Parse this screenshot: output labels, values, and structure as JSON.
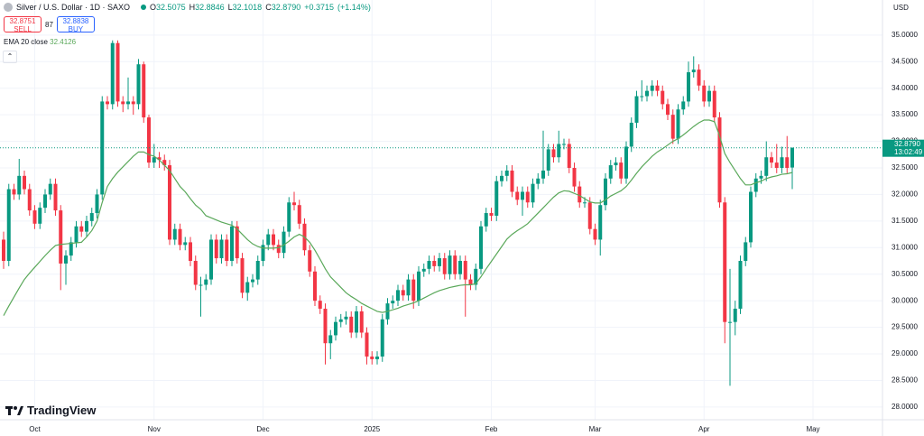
{
  "header": {
    "title": "Silver / U.S. Dollar · 1D · SAXO",
    "ohlc": [
      {
        "key": "O",
        "value": 32.5075
      },
      {
        "key": "H",
        "value": 32.8846
      },
      {
        "key": "L",
        "value": 32.1018
      },
      {
        "key": "C",
        "value": 32.879,
        "value_label": "32.8790"
      }
    ],
    "change": {
      "value": 0.3715,
      "label": "+0.3715"
    },
    "change_pct": {
      "value": 1.14,
      "label": "(+1.14%)"
    },
    "sell": {
      "price": 32.8751,
      "label": "SELL"
    },
    "spread": 87,
    "buy": {
      "price": 32.8838,
      "label": "BUY"
    },
    "logo": "TradingView"
  },
  "chart_data": {
    "type": "candlestick",
    "currency": "USD",
    "color_up": "#089981",
    "color_down": "#f23645",
    "grid": true,
    "categories": [
      null,
      null,
      null,
      null,
      null,
      null,
      "Oct",
      null,
      null,
      null,
      null,
      null,
      null,
      null,
      null,
      null,
      null,
      null,
      null,
      null,
      null,
      null,
      null,
      null,
      null,
      null,
      null,
      null,
      null,
      "Nov",
      null,
      null,
      null,
      null,
      null,
      null,
      null,
      null,
      null,
      null,
      null,
      null,
      null,
      null,
      null,
      null,
      null,
      null,
      null,
      null,
      "Dec",
      null,
      null,
      null,
      null,
      null,
      null,
      null,
      null,
      null,
      null,
      null,
      null,
      null,
      null,
      null,
      null,
      null,
      null,
      null,
      null,
      "2025",
      null,
      null,
      null,
      null,
      null,
      null,
      null,
      null,
      null,
      null,
      null,
      null,
      null,
      null,
      null,
      null,
      null,
      null,
      null,
      null,
      null,
      null,
      "Feb",
      null,
      null,
      null,
      null,
      null,
      null,
      null,
      null,
      null,
      null,
      null,
      null,
      null,
      null,
      null,
      null,
      null,
      null,
      null,
      "Mar",
      null,
      null,
      null,
      null,
      null,
      null,
      null,
      null,
      null,
      null,
      null,
      null,
      null,
      null,
      null,
      null,
      null,
      null,
      null,
      null,
      "Apr",
      null,
      null,
      null,
      null,
      null,
      null,
      null,
      null,
      null,
      null,
      null,
      null,
      null,
      null,
      null,
      null,
      null,
      null,
      null,
      null,
      "May"
    ],
    "open": [
      31.15,
      30.75,
      32.1,
      32.0,
      32.35,
      32.1,
      31.7,
      31.45,
      31.75,
      32.0,
      32.2,
      31.7,
      30.7,
      30.85,
      31.1,
      31.4,
      31.3,
      31.5,
      31.65,
      32.0,
      33.75,
      33.7,
      34.85,
      33.75,
      33.7,
      33.75,
      33.7,
      34.45,
      33.45,
      32.6,
      32.7,
      32.65,
      32.55,
      31.15,
      31.35,
      31.05,
      31.1,
      30.75,
      30.3,
      30.3,
      30.4,
      31.15,
      30.8,
      31.15,
      30.75,
      31.4,
      30.8,
      30.15,
      30.35,
      30.4,
      30.75,
      31.05,
      31.25,
      31.05,
      30.9,
      31.3,
      31.85,
      31.8,
      31.45,
      30.95,
      30.55,
      30.0,
      29.85,
      29.2,
      29.35,
      29.6,
      29.65,
      29.7,
      29.4,
      29.8,
      29.4,
      28.95,
      28.9,
      28.95,
      29.65,
      29.95,
      30.0,
      30.2,
      30.1,
      30.4,
      30.0,
      30.55,
      30.6,
      30.75,
      30.65,
      30.8,
      30.5,
      30.85,
      30.5,
      30.75,
      30.4,
      30.3,
      30.6,
      31.4,
      31.65,
      31.6,
      32.25,
      32.35,
      32.45,
      32.05,
      31.9,
      32.05,
      31.85,
      32.2,
      32.3,
      32.45,
      32.85,
      32.7,
      32.95,
      32.95,
      32.5,
      32.15,
      31.85,
      31.85,
      31.35,
      31.15,
      31.8,
      32.3,
      32.55,
      32.6,
      32.3,
      32.9,
      33.35,
      33.85,
      33.85,
      33.95,
      34.05,
      33.95,
      33.7,
      33.5,
      33.05,
      33.6,
      33.75,
      34.3,
      34.35,
      34.05,
      33.75,
      33.95,
      33.45,
      31.85,
      29.6,
      29.6,
      29.85,
      30.75,
      31.1,
      32.05,
      32.3,
      32.35,
      32.7,
      32.6,
      32.5,
      32.7,
      32.5075,
      null,
      null,
      null,
      null
    ],
    "high": [
      31.3,
      32.2,
      32.2,
      32.67,
      32.45,
      32.2,
      31.8,
      31.85,
      32.1,
      32.3,
      32.3,
      31.8,
      30.95,
      31.2,
      31.5,
      31.5,
      31.6,
      31.75,
      32.1,
      33.85,
      33.85,
      34.9,
      34.9,
      33.85,
      34.2,
      33.85,
      34.55,
      34.5,
      33.5,
      32.95,
      32.8,
      32.75,
      32.65,
      31.45,
      31.45,
      31.2,
      31.2,
      30.85,
      30.45,
      30.5,
      31.25,
      31.25,
      31.25,
      31.25,
      31.5,
      31.5,
      30.9,
      30.45,
      30.5,
      30.85,
      31.15,
      31.35,
      31.35,
      31.15,
      31.4,
      31.95,
      32.05,
      31.9,
      31.55,
      31.05,
      30.65,
      30.1,
      29.95,
      29.45,
      29.7,
      29.75,
      29.8,
      29.8,
      29.9,
      29.9,
      29.5,
      29.05,
      29.05,
      29.75,
      30.05,
      30.1,
      30.3,
      30.3,
      30.5,
      30.5,
      30.65,
      30.7,
      30.85,
      30.85,
      30.9,
      30.9,
      30.95,
      30.95,
      30.85,
      30.85,
      30.5,
      30.7,
      31.5,
      31.75,
      31.75,
      32.35,
      32.45,
      32.55,
      32.55,
      32.15,
      32.15,
      32.15,
      32.3,
      32.4,
      33.2,
      32.95,
      32.95,
      33.2,
      33.05,
      33.05,
      32.6,
      32.25,
      31.95,
      31.95,
      31.45,
      31.9,
      32.4,
      32.65,
      32.7,
      32.7,
      33.0,
      33.45,
      33.95,
      34.15,
      34.05,
      34.15,
      34.15,
      34.05,
      33.8,
      33.6,
      33.7,
      33.85,
      34.5,
      34.6,
      34.45,
      34.15,
      34.05,
      34.05,
      33.55,
      31.95,
      30.6,
      30.0,
      30.85,
      31.2,
      32.15,
      32.4,
      32.45,
      33.0,
      32.8,
      32.95,
      32.9,
      33.1,
      32.8846,
      null,
      null,
      null,
      null
    ],
    "low": [
      30.6,
      30.65,
      31.9,
      31.9,
      32.0,
      31.6,
      31.35,
      31.35,
      31.65,
      31.9,
      31.6,
      30.2,
      30.3,
      30.75,
      31.0,
      31.2,
      31.2,
      31.4,
      31.55,
      31.9,
      33.6,
      33.6,
      33.65,
      33.55,
      33.6,
      33.5,
      33.6,
      33.35,
      32.5,
      32.5,
      32.5,
      32.45,
      31.05,
      31.05,
      30.95,
      30.95,
      30.65,
      30.2,
      29.7,
      30.2,
      30.3,
      30.7,
      30.7,
      30.65,
      30.65,
      30.7,
      30.05,
      30.0,
      30.25,
      30.3,
      30.65,
      30.95,
      30.95,
      30.8,
      30.8,
      31.2,
      31.7,
      31.35,
      30.85,
      30.45,
      29.9,
      29.75,
      28.8,
      28.9,
      29.25,
      29.5,
      29.55,
      29.3,
      29.3,
      29.3,
      28.8,
      28.8,
      28.8,
      28.85,
      29.55,
      29.85,
      29.9,
      30.0,
      30.0,
      29.85,
      29.9,
      30.45,
      30.5,
      30.55,
      30.55,
      30.4,
      30.4,
      30.4,
      30.4,
      29.7,
      30.2,
      30.2,
      30.5,
      31.3,
      31.5,
      31.5,
      32.15,
      32.25,
      31.95,
      31.8,
      31.6,
      31.75,
      31.75,
      32.1,
      32.2,
      32.35,
      32.6,
      32.6,
      32.85,
      32.4,
      32.05,
      31.75,
      31.75,
      31.25,
      31.05,
      30.85,
      31.7,
      32.2,
      32.45,
      32.2,
      32.2,
      32.8,
      33.25,
      33.75,
      33.75,
      33.85,
      33.85,
      33.6,
      33.4,
      32.95,
      32.95,
      33.5,
      33.65,
      34.2,
      33.95,
      33.65,
      33.65,
      33.35,
      31.75,
      29.2,
      28.4,
      29.35,
      29.75,
      30.65,
      31.0,
      31.95,
      32.2,
      32.25,
      32.5,
      32.4,
      32.4,
      32.4,
      32.1018,
      null,
      null,
      null,
      null
    ],
    "close": [
      30.75,
      32.1,
      32.0,
      32.35,
      32.1,
      31.7,
      31.45,
      31.75,
      32.0,
      32.2,
      31.7,
      30.7,
      30.85,
      31.1,
      31.4,
      31.3,
      31.5,
      31.65,
      32.0,
      33.75,
      33.7,
      34.85,
      33.75,
      33.7,
      33.75,
      33.7,
      34.45,
      33.45,
      32.6,
      32.7,
      32.65,
      32.55,
      31.15,
      31.35,
      31.05,
      31.1,
      30.75,
      30.3,
      30.3,
      30.4,
      31.15,
      30.8,
      31.15,
      30.75,
      31.4,
      30.8,
      30.15,
      30.35,
      30.4,
      30.75,
      31.05,
      31.25,
      31.05,
      30.9,
      31.3,
      31.85,
      31.8,
      31.45,
      30.95,
      30.55,
      30.0,
      29.85,
      29.2,
      29.35,
      29.6,
      29.65,
      29.7,
      29.4,
      29.8,
      29.4,
      28.95,
      28.9,
      28.95,
      29.65,
      29.95,
      30.0,
      30.2,
      30.1,
      30.4,
      30.0,
      30.55,
      30.6,
      30.75,
      30.65,
      30.8,
      30.5,
      30.85,
      30.5,
      30.75,
      30.4,
      30.3,
      30.6,
      31.4,
      31.65,
      31.6,
      32.25,
      32.35,
      32.45,
      32.05,
      31.9,
      32.05,
      31.85,
      32.2,
      32.3,
      32.45,
      32.85,
      32.7,
      32.95,
      32.95,
      32.5,
      32.15,
      31.85,
      31.85,
      31.35,
      31.15,
      31.8,
      32.3,
      32.55,
      32.6,
      32.3,
      32.9,
      33.35,
      33.85,
      33.85,
      33.95,
      34.05,
      33.95,
      33.7,
      33.5,
      33.05,
      33.6,
      33.75,
      34.3,
      34.35,
      34.05,
      33.75,
      33.95,
      33.45,
      31.85,
      29.6,
      29.6,
      29.85,
      30.75,
      31.1,
      32.05,
      32.3,
      32.35,
      32.7,
      32.6,
      32.5,
      32.7,
      32.5,
      32.879,
      null,
      null,
      null,
      null
    ],
    "ema": {
      "name": "EMA 20 close",
      "color": "#5aa85a",
      "values": [
        29.72,
        29.9,
        30.07,
        30.24,
        30.4,
        30.52,
        30.63,
        30.74,
        30.85,
        30.95,
        31.04,
        31.06,
        31.07,
        31.08,
        31.09,
        31.1,
        31.2,
        31.32,
        31.5,
        31.85,
        32.15,
        32.3,
        32.42,
        32.52,
        32.62,
        32.72,
        32.8,
        32.8,
        32.75,
        32.72,
        32.65,
        32.55,
        32.45,
        32.3,
        32.15,
        32.05,
        31.92,
        31.8,
        31.72,
        31.6,
        31.56,
        31.52,
        31.48,
        31.45,
        31.42,
        31.35,
        31.25,
        31.15,
        31.07,
        31.02,
        30.99,
        30.99,
        30.99,
        31.0,
        31.05,
        31.12,
        31.2,
        31.25,
        31.2,
        31.1,
        30.95,
        30.78,
        30.6,
        30.45,
        30.35,
        30.25,
        30.15,
        30.08,
        30.02,
        29.95,
        29.9,
        29.85,
        29.8,
        29.78,
        29.8,
        29.83,
        29.86,
        29.9,
        29.93,
        29.96,
        30.0,
        30.05,
        30.1,
        30.15,
        30.19,
        30.22,
        30.25,
        30.27,
        30.29,
        30.3,
        30.3,
        30.32,
        30.45,
        30.6,
        30.74,
        30.88,
        31.02,
        31.16,
        31.25,
        31.32,
        31.38,
        31.45,
        31.55,
        31.65,
        31.75,
        31.85,
        31.95,
        32.03,
        32.07,
        32.06,
        32.02,
        31.98,
        31.92,
        31.86,
        31.84,
        31.84,
        31.9,
        31.97,
        32.02,
        32.07,
        32.15,
        32.27,
        32.4,
        32.52,
        32.62,
        32.72,
        32.8,
        32.86,
        32.93,
        33.0,
        33.05,
        33.12,
        33.2,
        33.28,
        33.35,
        33.4,
        33.4,
        33.37,
        33.1,
        32.77,
        32.6,
        32.45,
        32.3,
        32.18,
        32.18,
        32.22,
        32.25,
        32.3,
        32.33,
        32.35,
        32.38,
        32.39,
        32.4126,
        null,
        null,
        null,
        null
      ]
    },
    "last_price": {
      "value": 32.879,
      "label": "32.8790"
    },
    "countdown": "13:02:49",
    "ylim": [
      27.76,
      35.66
    ],
    "yticks": [
      {
        "value": 28,
        "label": "28.0000"
      },
      {
        "value": 28.5,
        "label": "28.5000"
      },
      {
        "value": 29,
        "label": "29.0000"
      },
      {
        "value": 29.5,
        "label": "29.5000"
      },
      {
        "value": 30,
        "label": "30.0000"
      },
      {
        "value": 30.5,
        "label": "30.5000"
      },
      {
        "value": 31,
        "label": "31.0000"
      },
      {
        "value": 31.5,
        "label": "31.5000"
      },
      {
        "value": 32,
        "label": "32.0000"
      },
      {
        "value": 32.5,
        "label": "32.5000"
      },
      {
        "value": 33,
        "label": "33.0000"
      },
      {
        "value": 33.5,
        "label": "33.5000"
      },
      {
        "value": 34,
        "label": "34.0000"
      },
      {
        "value": 34.5,
        "label": "34.5000"
      },
      {
        "value": 35,
        "label": "35.0000"
      }
    ]
  }
}
